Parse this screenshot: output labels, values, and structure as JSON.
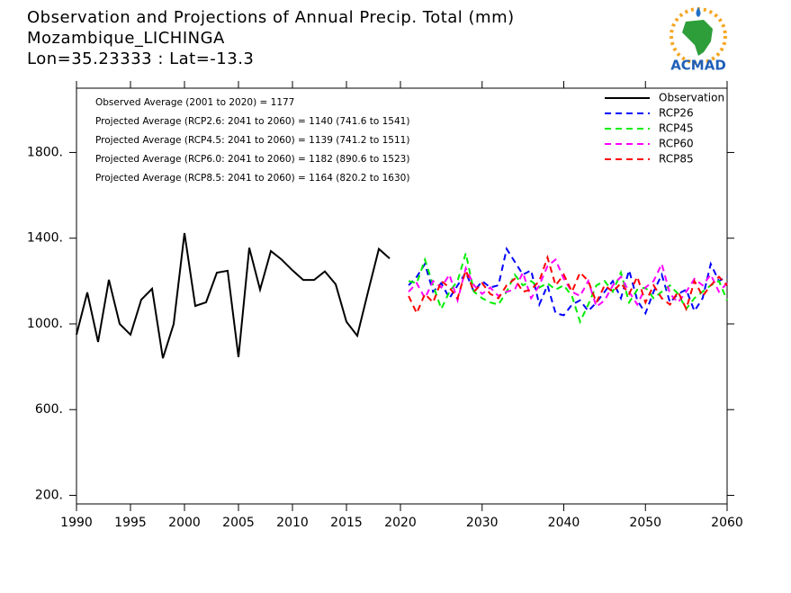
{
  "chart_data": {
    "type": "line",
    "title_lines": [
      "Observation and Projections of Annual Precip. Total (mm)",
      "Mozambique_LICHINGA",
      "Lon=35.23333 : Lat=-13.3"
    ],
    "logo": "ACMAD",
    "annotations": [
      "Observed Average (2001 to 2020) = 1177",
      "Projected Average (RCP2.6: 2041 to 2060) = 1140 (741.6 to 1541)",
      "Projected Average (RCP4.5: 2041 to 2060) = 1139 (741.2 to 1511)",
      "Projected Average (RCP6.0: 2041 to 2060) = 1182 (890.6 to 1523)",
      "Projected Average (RCP8.5: 2041 to 2060) = 1164 (820.2 to 1630)"
    ],
    "xlim": [
      1990,
      2060
    ],
    "xbreak": 2020,
    "xticks": [
      1990,
      1995,
      2000,
      2005,
      2010,
      2015,
      2020,
      2030,
      2040,
      2050,
      2060
    ],
    "ylim": [
      160,
      2100
    ],
    "yticks": [
      {
        "value": 200,
        "label": "200."
      },
      {
        "value": 600,
        "label": "600."
      },
      {
        "value": 1000,
        "label": "1000."
      },
      {
        "value": 1400,
        "label": "1400."
      },
      {
        "value": 1800,
        "label": "1800."
      }
    ],
    "grid": false,
    "legend_position": "top-right",
    "series": [
      {
        "name": "Observation",
        "color": "#000000",
        "dashed": false,
        "x": [
          1990,
          1991,
          1992,
          1993,
          1994,
          1995,
          1996,
          1997,
          1998,
          1999,
          2000,
          2001,
          2002,
          2003,
          2004,
          2005,
          2006,
          2007,
          2008,
          2009,
          2010,
          2011,
          2012,
          2013,
          2014,
          2015,
          2016,
          2017,
          2018,
          2019
        ],
        "values": [
          950,
          1147,
          916,
          1206,
          1000,
          950,
          1113,
          1164,
          840,
          1000,
          1424,
          1084,
          1101,
          1239,
          1248,
          845,
          1355,
          1160,
          1340,
          1300,
          1250,
          1205,
          1205,
          1245,
          1185,
          1010,
          945,
          1150,
          1350,
          1305
        ]
      },
      {
        "name": "RCP26",
        "color": "#0000ff",
        "dashed": true,
        "x": [
          2021,
          2022,
          2023,
          2024,
          2025,
          2026,
          2027,
          2028,
          2029,
          2030,
          2031,
          2032,
          2033,
          2034,
          2035,
          2036,
          2037,
          2038,
          2039,
          2040,
          2041,
          2042,
          2043,
          2044,
          2045,
          2046,
          2047,
          2048,
          2049,
          2050,
          2051,
          2052,
          2053,
          2054,
          2055,
          2056,
          2057,
          2058,
          2059,
          2060
        ],
        "values": [
          1180,
          1220,
          1280,
          1150,
          1190,
          1120,
          1180,
          1240,
          1150,
          1200,
          1170,
          1180,
          1350,
          1290,
          1230,
          1250,
          1090,
          1180,
          1050,
          1040,
          1090,
          1110,
          1060,
          1100,
          1150,
          1200,
          1120,
          1250,
          1110,
          1050,
          1150,
          1230,
          1100,
          1140,
          1160,
          1060,
          1120,
          1280,
          1200,
          1220
        ]
      },
      {
        "name": "RCP45",
        "color": "#00ee00",
        "dashed": true,
        "x": [
          2021,
          2022,
          2023,
          2024,
          2025,
          2026,
          2027,
          2028,
          2029,
          2030,
          2031,
          2032,
          2033,
          2034,
          2035,
          2036,
          2037,
          2038,
          2039,
          2040,
          2041,
          2042,
          2043,
          2044,
          2045,
          2046,
          2047,
          2048,
          2049,
          2050,
          2051,
          2052,
          2053,
          2054,
          2055,
          2056,
          2057,
          2058,
          2059,
          2060
        ],
        "values": [
          1200,
          1190,
          1300,
          1180,
          1070,
          1150,
          1200,
          1330,
          1150,
          1120,
          1100,
          1090,
          1150,
          1230,
          1180,
          1200,
          1170,
          1190,
          1160,
          1180,
          1130,
          1010,
          1090,
          1180,
          1200,
          1150,
          1240,
          1100,
          1160,
          1170,
          1120,
          1150,
          1180,
          1140,
          1070,
          1120,
          1150,
          1180,
          1200,
          1110
        ]
      },
      {
        "name": "RCP60",
        "color": "#ff00ff",
        "dashed": true,
        "x": [
          2021,
          2022,
          2023,
          2024,
          2025,
          2026,
          2027,
          2028,
          2029,
          2030,
          2031,
          2032,
          2033,
          2034,
          2035,
          2036,
          2037,
          2038,
          2039,
          2040,
          2041,
          2042,
          2043,
          2044,
          2045,
          2046,
          2047,
          2048,
          2049,
          2050,
          2051,
          2052,
          2053,
          2054,
          2055,
          2056,
          2057,
          2058,
          2059,
          2060
        ],
        "values": [
          1150,
          1190,
          1120,
          1200,
          1170,
          1230,
          1110,
          1260,
          1180,
          1140,
          1170,
          1130,
          1150,
          1160,
          1240,
          1120,
          1180,
          1270,
          1300,
          1210,
          1150,
          1130,
          1200,
          1080,
          1110,
          1180,
          1220,
          1150,
          1090,
          1170,
          1200,
          1280,
          1140,
          1100,
          1150,
          1210,
          1180,
          1230,
          1150,
          1190
        ]
      },
      {
        "name": "RCP85",
        "color": "#ff0000",
        "dashed": true,
        "x": [
          2021,
          2022,
          2023,
          2024,
          2025,
          2026,
          2027,
          2028,
          2029,
          2030,
          2031,
          2032,
          2033,
          2034,
          2035,
          2036,
          2037,
          2038,
          2039,
          2040,
          2041,
          2042,
          2043,
          2044,
          2045,
          2046,
          2047,
          2048,
          2049,
          2050,
          2051,
          2052,
          2053,
          2054,
          2055,
          2056,
          2057,
          2058,
          2059,
          2060
        ],
        "values": [
          1130,
          1050,
          1140,
          1100,
          1200,
          1170,
          1120,
          1250,
          1150,
          1190,
          1140,
          1120,
          1180,
          1210,
          1150,
          1160,
          1200,
          1310,
          1180,
          1230,
          1150,
          1240,
          1200,
          1100,
          1180,
          1150,
          1190,
          1140,
          1220,
          1100,
          1180,
          1120,
          1090,
          1150,
          1070,
          1200,
          1130,
          1180,
          1220,
          1180
        ]
      }
    ]
  }
}
